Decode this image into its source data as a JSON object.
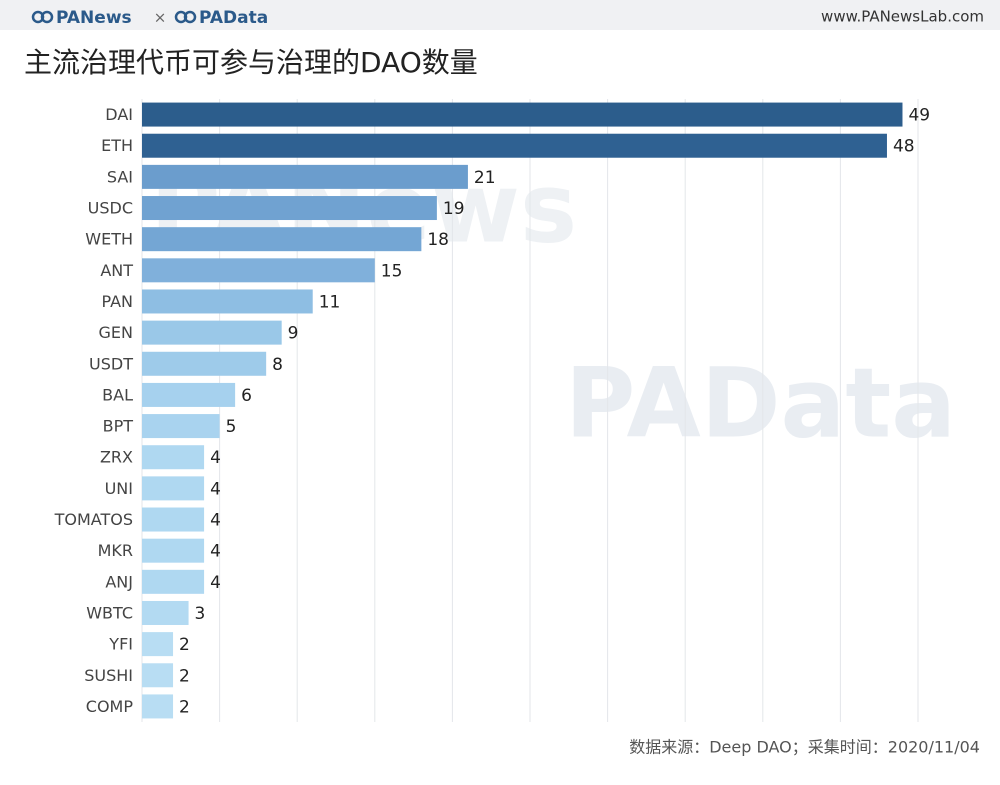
{
  "header": {
    "brand_left": "PANews",
    "separator": "×",
    "brand_right": "PAData",
    "url": "www.PANewsLab.com"
  },
  "watermarks": [
    "PANews",
    "PAData"
  ],
  "chart_data": {
    "type": "barh",
    "title": "主流治理代币可参与治理的DAO数量",
    "categories": [
      "DAI",
      "ETH",
      "SAI",
      "USDC",
      "WETH",
      "ANT",
      "PAN",
      "GEN",
      "USDT",
      "BAL",
      "BPT",
      "ZRX",
      "UNI",
      "TOMATOS",
      "MKR",
      "ANJ",
      "WBTC",
      "YFI",
      "SUSHI",
      "COMP"
    ],
    "values": [
      49,
      48,
      21,
      19,
      18,
      15,
      11,
      9,
      8,
      6,
      5,
      4,
      4,
      4,
      4,
      4,
      3,
      2,
      2,
      2
    ],
    "colors": [
      "#2c5d8c",
      "#2f6192",
      "#6b9dcd",
      "#70a2d1",
      "#74a6d4",
      "#80b0db",
      "#8ebee3",
      "#9ac8e8",
      "#9ecbea",
      "#a6d1ee",
      "#a9d3ef",
      "#afd8f1",
      "#afd8f1",
      "#afd8f1",
      "#afd8f1",
      "#afd8f1",
      "#b3daf2",
      "#b8ddf3",
      "#b8ddf3",
      "#b8ddf3"
    ],
    "xlim": [
      0,
      50
    ],
    "xticks": [
      0,
      5,
      10,
      15,
      20,
      25,
      30,
      35,
      40,
      45,
      50
    ],
    "grid": true,
    "source": "数据来源：Deep DAO；采集时间：2020/11/04"
  }
}
